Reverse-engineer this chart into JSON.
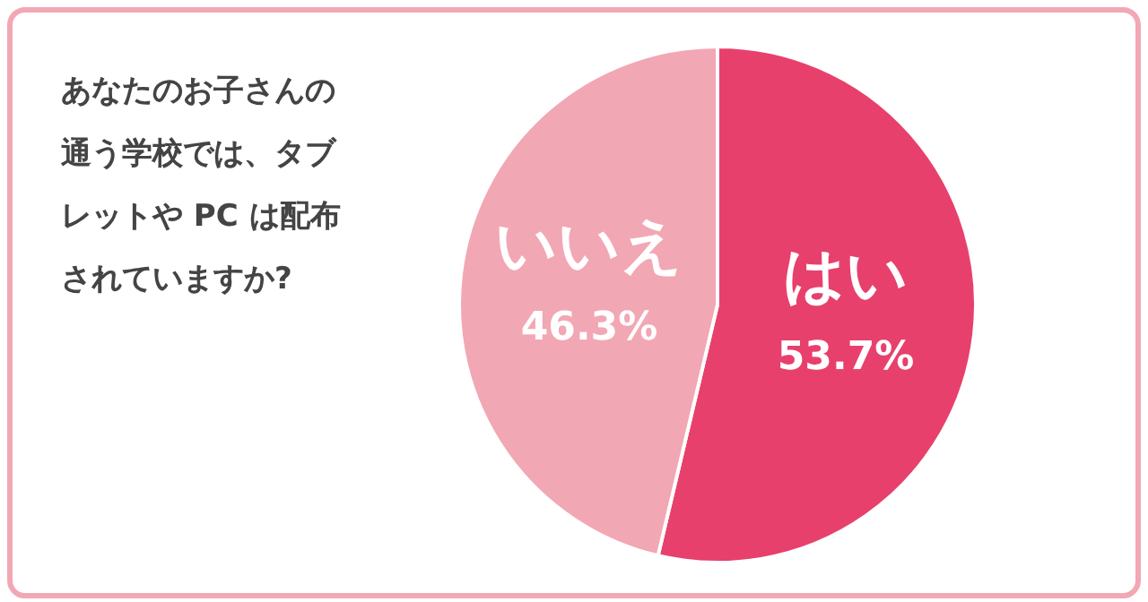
{
  "chart_data": {
    "type": "pie",
    "title": "あなたのお子さんの通う学校では、タブレットや PC は配布されていますか?",
    "categories": [
      "はい",
      "いいえ"
    ],
    "values": [
      53.7,
      46.3
    ],
    "value_labels": [
      "53.7%",
      "46.3%"
    ],
    "colors": [
      "#e8406c",
      "#f2a7b4"
    ],
    "legend": false
  }
}
